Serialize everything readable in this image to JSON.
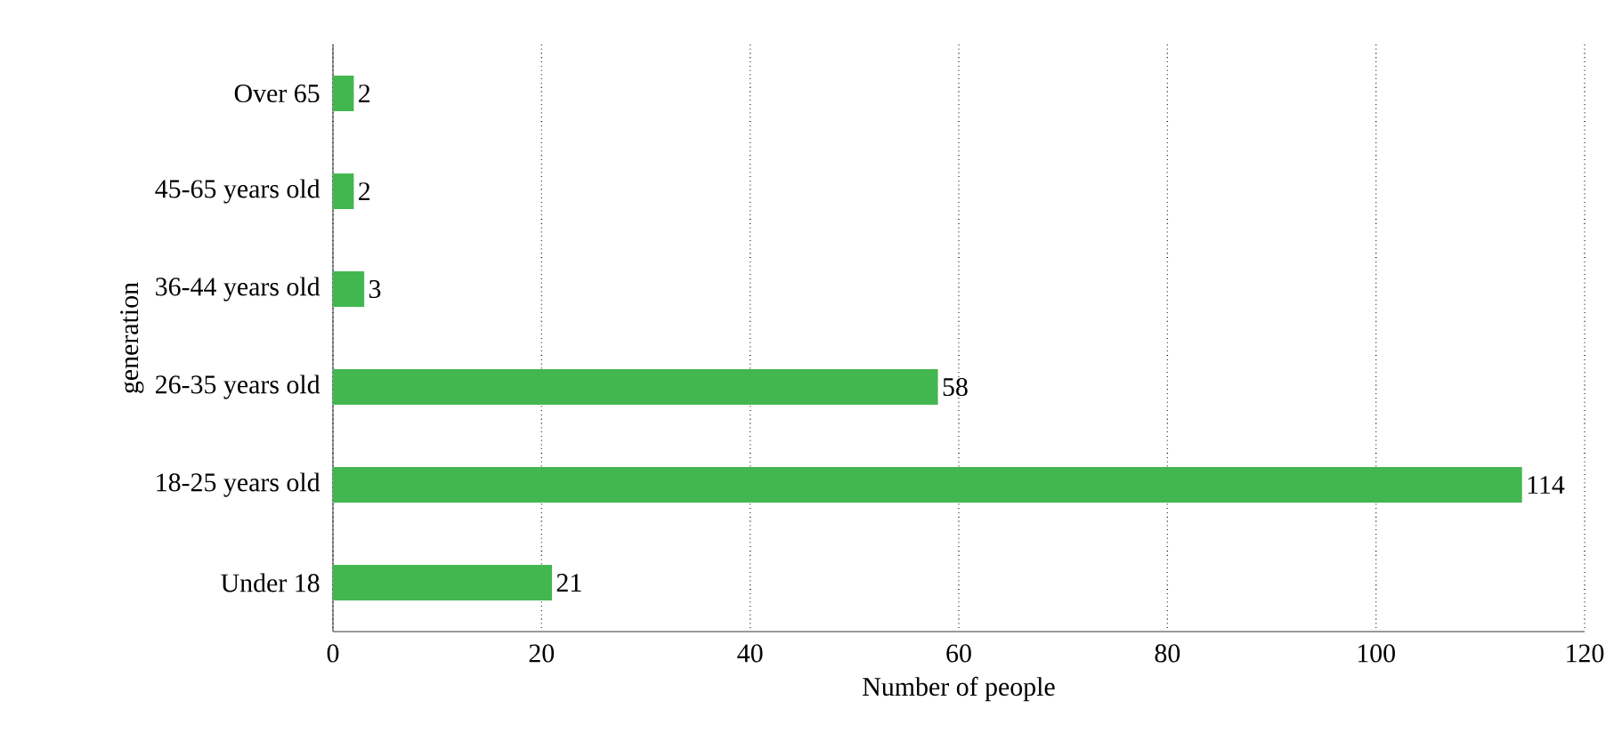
{
  "chart_data": {
    "type": "bar",
    "orientation": "horizontal",
    "xlabel": "Number of people",
    "ylabel": "generation",
    "categories": [
      "Over 65",
      "45-65 years old",
      "36-44 years old",
      "26-35 years old",
      "18-25 years old",
      "Under 18"
    ],
    "values": [
      2,
      2,
      3,
      58,
      114,
      21
    ],
    "color": "#43b74f",
    "xlim": [
      0,
      120
    ],
    "xticks": [
      0,
      20,
      40,
      60,
      80,
      100,
      120
    ],
    "grid": "x",
    "data_labels": true
  }
}
